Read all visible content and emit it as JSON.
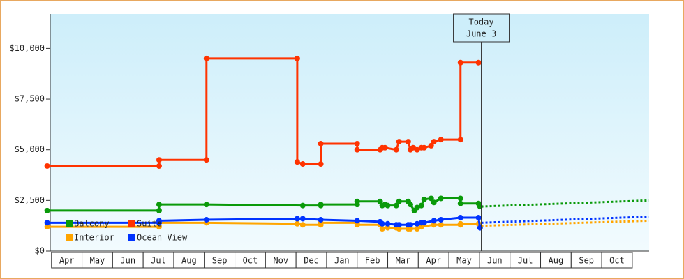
{
  "chart_data": {
    "type": "line",
    "categories": [
      "Apr",
      "May",
      "Jun",
      "Jul",
      "Aug",
      "Sep",
      "Oct",
      "Nov",
      "Dec",
      "Jan",
      "Feb",
      "Mar",
      "Apr",
      "May",
      "Jun",
      "Jul",
      "Aug",
      "Sep",
      "Oct"
    ],
    "xlim": [
      -0.2,
      19.55
    ],
    "ylim": [
      0,
      11700
    ],
    "yticks": [
      {
        "value": 0,
        "label": "$0"
      },
      {
        "value": 2500,
        "label": "$2,500"
      },
      {
        "value": 5000,
        "label": "$5,000"
      },
      {
        "value": 7500,
        "label": "$7,500"
      },
      {
        "value": 10000,
        "label": "$10,000"
      }
    ],
    "annotation": {
      "x": 14.06,
      "lines": [
        "Today",
        "June 3"
      ]
    },
    "series": [
      {
        "name": "Balcony",
        "color": "#0a9a0a",
        "x": [
          -0.14,
          3.52,
          3.52,
          5.07,
          8.22,
          8.81,
          8.81,
          10.0,
          10.0,
          10.75,
          10.82,
          10.91,
          11.0,
          11.28,
          11.37,
          11.67,
          11.74,
          11.87,
          11.96,
          12.1,
          12.19,
          12.42,
          12.51,
          12.74,
          13.38,
          13.38,
          13.97,
          14.02
        ],
        "values": [
          2000,
          2000,
          2300,
          2300,
          2250,
          2250,
          2300,
          2300,
          2450,
          2450,
          2250,
          2300,
          2250,
          2250,
          2450,
          2450,
          2300,
          2000,
          2150,
          2250,
          2550,
          2600,
          2400,
          2600,
          2600,
          2350,
          2350,
          2200
        ],
        "forecast": {
          "x": [
            14.06,
            19.54
          ],
          "values": [
            2200,
            2500
          ]
        }
      },
      {
        "name": "Suite",
        "color": "#ff3300",
        "x": [
          -0.14,
          3.52,
          3.52,
          5.07,
          5.07,
          8.04,
          8.04,
          8.22,
          8.81,
          8.81,
          10.0,
          10.0,
          10.75,
          10.82,
          10.91,
          11.28,
          11.37,
          11.67,
          11.74,
          11.83,
          11.96,
          12.1,
          12.19,
          12.42,
          12.51,
          12.74,
          13.38,
          13.38,
          13.97
        ],
        "values": [
          4200,
          4200,
          4500,
          4500,
          9500,
          9500,
          4400,
          4300,
          4300,
          5300,
          5300,
          5000,
          5000,
          5100,
          5100,
          5000,
          5400,
          5400,
          5000,
          5100,
          5000,
          5100,
          5100,
          5200,
          5400,
          5500,
          5500,
          9300,
          9300
        ]
      },
      {
        "name": "Interior",
        "color": "#ffa500",
        "x": [
          -0.14,
          3.52,
          3.52,
          5.07,
          8.04,
          8.22,
          8.81,
          8.81,
          10.0,
          10.0,
          10.75,
          10.82,
          11.0,
          11.28,
          11.37,
          11.67,
          11.74,
          11.96,
          12.1,
          12.51,
          12.74,
          13.38,
          13.38,
          13.97
        ],
        "values": [
          1200,
          1200,
          1400,
          1400,
          1350,
          1300,
          1300,
          1400,
          1400,
          1300,
          1300,
          1100,
          1150,
          1150,
          1100,
          1100,
          1100,
          1100,
          1200,
          1300,
          1300,
          1300,
          1350,
          1350
        ],
        "forecast": {
          "x": [
            14.06,
            19.54
          ],
          "values": [
            1250,
            1500
          ]
        }
      },
      {
        "name": "Ocean View",
        "color": "#0033ff",
        "x": [
          -0.14,
          3.52,
          3.52,
          5.07,
          8.04,
          8.22,
          8.81,
          10.0,
          10.75,
          10.82,
          11.0,
          11.28,
          11.37,
          11.67,
          11.74,
          11.96,
          12.1,
          12.19,
          12.51,
          12.74,
          13.38,
          13.97,
          14.02
        ],
        "values": [
          1400,
          1400,
          1500,
          1550,
          1600,
          1600,
          1550,
          1500,
          1450,
          1350,
          1350,
          1300,
          1300,
          1300,
          1300,
          1350,
          1400,
          1400,
          1500,
          1550,
          1650,
          1650,
          1150
        ],
        "forecast": {
          "x": [
            14.06,
            19.54
          ],
          "values": [
            1400,
            1700
          ]
        }
      }
    ]
  }
}
